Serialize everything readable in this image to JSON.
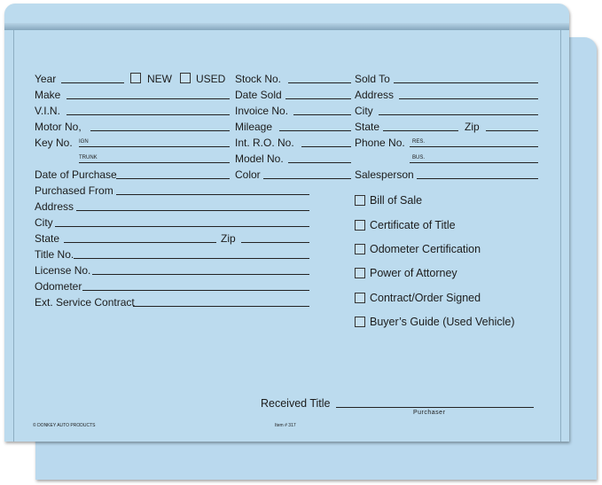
{
  "form": {
    "top": {
      "year": "Year",
      "new": "NEW",
      "used": "USED",
      "stock_no": "Stock No.",
      "sold_to": "Sold To",
      "make": "Make",
      "date_sold": "Date Sold",
      "address": "Address",
      "vin": "V.I.N.",
      "invoice_no": "Invoice No.",
      "city": "City",
      "motor_no": "Motor No,",
      "mileage": "Mileage",
      "state": "State",
      "zip": "Zip",
      "key_no": "Key No.",
      "ign": "IGN",
      "int_ro_no": "Int. R.O. No.",
      "phone_no": "Phone No.",
      "res": "RES.",
      "trunk": "TRUNK",
      "model_no": "Model No.",
      "bus": "BUS.",
      "date_of_purchase": "Date of Purchase",
      "color": "Color",
      "salesperson": "Salesperson"
    },
    "purchase": {
      "purchased_from": "Purchased From",
      "address": "Address",
      "city": "City",
      "state": "State",
      "zip": "Zip",
      "title_no": "Title No.",
      "license_no": "License No.",
      "odometer": "Odometer",
      "ext_service_contract": "Ext. Service Contract"
    },
    "checklist": [
      {
        "label": "Bill of Sale",
        "checked": false
      },
      {
        "label": "Certificate of Title",
        "checked": false
      },
      {
        "label": "Odometer Certification",
        "checked": false
      },
      {
        "label": "Power of Attorney",
        "checked": false
      },
      {
        "label": "Contract/Order Signed",
        "checked": false
      },
      {
        "label": "Buyer’s Guide (Used Vehicle)",
        "checked": false
      }
    ],
    "received_title": "Received Title",
    "purchaser": "Purchaser",
    "brand": "© DONKEY AUTO PRODUCTS",
    "item_no": "Item # 317"
  },
  "colors": {
    "folder": "#bcdbee",
    "text": "#1c1c1c"
  }
}
